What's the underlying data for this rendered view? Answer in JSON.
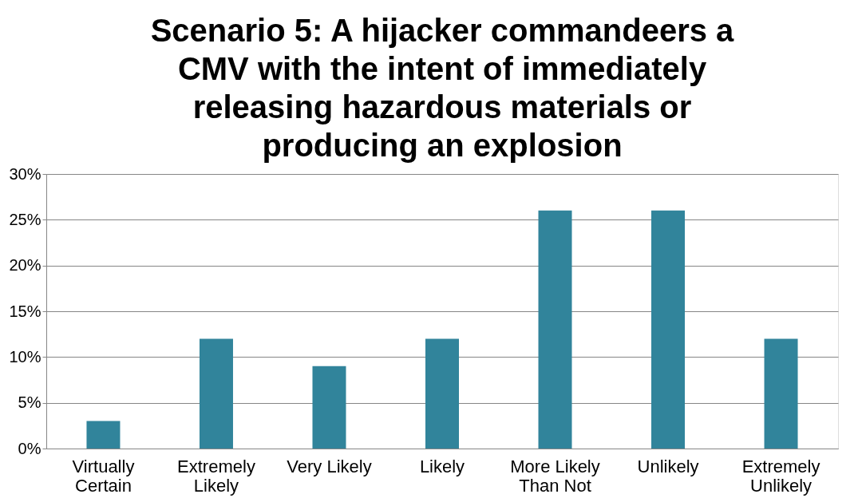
{
  "chart_data": {
    "type": "bar",
    "title": "Scenario 5: A hijacker commandeers a CMV with the intent of immediately releasing hazardous materials or producing an explosion",
    "categories": [
      "Virtually Certain",
      "Extremely Likely",
      "Very Likely",
      "Likely",
      "More Likely Than Not",
      "Unlikely",
      "Extremely Unlikely"
    ],
    "values": [
      3,
      12,
      9,
      12,
      26,
      26,
      12
    ],
    "color": "#31849b",
    "ylim": [
      0,
      30
    ],
    "yticks": [
      {
        "value": 0,
        "label": "0%"
      },
      {
        "value": 5,
        "label": "5%"
      },
      {
        "value": 10,
        "label": "10%"
      },
      {
        "value": 15,
        "label": "15%"
      },
      {
        "value": 20,
        "label": "20%"
      },
      {
        "value": 25,
        "label": "25%"
      },
      {
        "value": 30,
        "label": "30%"
      }
    ],
    "grid": "y"
  }
}
